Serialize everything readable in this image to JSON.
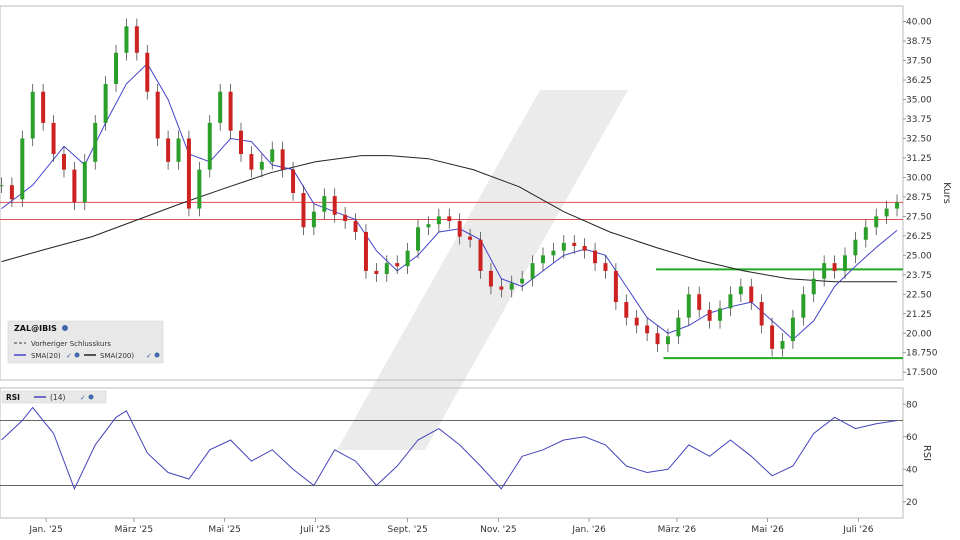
{
  "chart_data": [
    {
      "type": "line",
      "panel": "price",
      "xlabel": "",
      "ylabel": "Kurs",
      "ylim": [
        17.0,
        41.0
      ],
      "y_ticks": [
        17.5,
        18.75,
        20.0,
        21.25,
        22.5,
        23.75,
        25.0,
        26.25,
        27.5,
        28.75,
        30.0,
        31.25,
        32.5,
        33.75,
        35.0,
        36.25,
        37.5,
        38.75,
        40.0
      ],
      "y_tick_labels": [
        "17.500",
        "18.750",
        "20.00",
        "21.25",
        "22.50",
        "23.75",
        "25.00",
        "26.25",
        "27.50",
        "28.75",
        "30.00",
        "31.25",
        "32.50",
        "33.75",
        "35.00",
        "36.25",
        "37.50",
        "38.75",
        "40.00"
      ],
      "x_tick_labels": [
        "Jan. '25",
        "März '25",
        "Mai '25",
        "Juli '25",
        "Sept. '25",
        "Nov. '25",
        "Jan. '26",
        "März '26",
        "Mai '26",
        "Juli '26"
      ],
      "x_tick_dates": [
        "2025-01-01",
        "2025-03-01",
        "2025-05-01",
        "2025-07-01",
        "2025-09-01",
        "2025-11-01",
        "2026-01-01",
        "2026-03-01",
        "2026-05-01",
        "2026-07-01"
      ],
      "x_range": [
        "2024-12-01",
        "2026-07-31"
      ],
      "grid": false,
      "legend_position": "bottom-left",
      "legend": {
        "symbol": "ZAL@IBIS",
        "prev_close_label": "Vorheriger Schlusskurs",
        "sma20_label": "SMA(20)",
        "sma200_label": "SMA(200)"
      },
      "horizontal_lines": [
        {
          "kind": "resistance",
          "value": 28.4,
          "color": "#e05050"
        },
        {
          "kind": "resistance",
          "value": 27.3,
          "color": "#e05050"
        },
        {
          "kind": "support",
          "value": 24.1,
          "color": "#22aa22",
          "from": "2026-02-15",
          "to": "2026-07-31"
        },
        {
          "kind": "support",
          "value": 18.4,
          "color": "#22aa22",
          "from": "2026-02-20",
          "to": "2026-07-31"
        }
      ],
      "price_series": {
        "name": "ZAL@IBIS",
        "points": [
          [
            "2024-12-02",
            29.5
          ],
          [
            "2024-12-09",
            28.6
          ],
          [
            "2024-12-16",
            32.5
          ],
          [
            "2024-12-23",
            35.5
          ],
          [
            "2024-12-30",
            33.5
          ],
          [
            "2025-01-06",
            31.5
          ],
          [
            "2025-01-13",
            30.5
          ],
          [
            "2025-01-20",
            28.4
          ],
          [
            "2025-01-27",
            31.0
          ],
          [
            "2025-02-03",
            33.5
          ],
          [
            "2025-02-10",
            36.0
          ],
          [
            "2025-02-17",
            38.0
          ],
          [
            "2025-02-24",
            39.7
          ],
          [
            "2025-03-03",
            38.0
          ],
          [
            "2025-03-10",
            35.5
          ],
          [
            "2025-03-17",
            32.5
          ],
          [
            "2025-03-24",
            31.0
          ],
          [
            "2025-03-31",
            32.5
          ],
          [
            "2025-04-07",
            28.0
          ],
          [
            "2025-04-14",
            30.5
          ],
          [
            "2025-04-21",
            33.5
          ],
          [
            "2025-04-28",
            35.5
          ],
          [
            "2025-05-05",
            33.0
          ],
          [
            "2025-05-12",
            31.5
          ],
          [
            "2025-05-19",
            30.5
          ],
          [
            "2025-05-26",
            31.0
          ],
          [
            "2025-06-02",
            31.8
          ],
          [
            "2025-06-09",
            30.5
          ],
          [
            "2025-06-16",
            29.0
          ],
          [
            "2025-06-23",
            26.8
          ],
          [
            "2025-06-30",
            27.8
          ],
          [
            "2025-07-07",
            28.8
          ],
          [
            "2025-07-14",
            27.6
          ],
          [
            "2025-07-21",
            27.2
          ],
          [
            "2025-07-28",
            26.5
          ],
          [
            "2025-08-04",
            24.0
          ],
          [
            "2025-08-11",
            23.8
          ],
          [
            "2025-08-18",
            24.5
          ],
          [
            "2025-08-25",
            24.3
          ],
          [
            "2025-09-01",
            25.3
          ],
          [
            "2025-09-08",
            26.8
          ],
          [
            "2025-09-15",
            27.0
          ],
          [
            "2025-09-22",
            27.5
          ],
          [
            "2025-09-29",
            27.2
          ],
          [
            "2025-10-06",
            26.2
          ],
          [
            "2025-10-13",
            26.0
          ],
          [
            "2025-10-20",
            24.0
          ],
          [
            "2025-10-27",
            23.0
          ],
          [
            "2025-11-03",
            22.8
          ],
          [
            "2025-11-10",
            23.2
          ],
          [
            "2025-11-17",
            23.5
          ],
          [
            "2025-11-24",
            24.5
          ],
          [
            "2025-12-01",
            25.0
          ],
          [
            "2025-12-08",
            25.3
          ],
          [
            "2025-12-15",
            25.8
          ],
          [
            "2025-12-22",
            25.6
          ],
          [
            "2025-12-29",
            25.3
          ],
          [
            "2026-01-05",
            24.5
          ],
          [
            "2026-01-12",
            24.0
          ],
          [
            "2026-01-19",
            22.0
          ],
          [
            "2026-01-26",
            21.0
          ],
          [
            "2026-02-02",
            20.5
          ],
          [
            "2026-02-09",
            20.0
          ],
          [
            "2026-02-16",
            19.3
          ],
          [
            "2026-02-23",
            19.8
          ],
          [
            "2026-03-02",
            21.0
          ],
          [
            "2026-03-09",
            22.5
          ],
          [
            "2026-03-16",
            21.5
          ],
          [
            "2026-03-23",
            20.8
          ],
          [
            "2026-03-30",
            21.6
          ],
          [
            "2026-04-06",
            22.5
          ],
          [
            "2026-04-13",
            23.0
          ],
          [
            "2026-04-20",
            22.0
          ],
          [
            "2026-04-27",
            20.5
          ],
          [
            "2026-05-04",
            19.0
          ],
          [
            "2026-05-11",
            19.5
          ],
          [
            "2026-05-18",
            21.0
          ],
          [
            "2026-05-25",
            22.5
          ],
          [
            "2026-06-01",
            23.5
          ],
          [
            "2026-06-08",
            24.5
          ],
          [
            "2026-06-15",
            24.0
          ],
          [
            "2026-06-22",
            25.0
          ],
          [
            "2026-06-29",
            26.0
          ],
          [
            "2026-07-06",
            26.8
          ],
          [
            "2026-07-13",
            27.5
          ],
          [
            "2026-07-20",
            28.0
          ],
          [
            "2026-07-27",
            28.4
          ]
        ]
      },
      "sma20": {
        "name": "SMA(20)",
        "color": "#4444cc",
        "points": [
          [
            "2024-12-02",
            28.0
          ],
          [
            "2024-12-23",
            29.5
          ],
          [
            "2025-01-13",
            32.0
          ],
          [
            "2025-01-27",
            30.8
          ],
          [
            "2025-02-10",
            33.5
          ],
          [
            "2025-02-24",
            36.0
          ],
          [
            "2025-03-10",
            37.3
          ],
          [
            "2025-03-24",
            35.0
          ],
          [
            "2025-04-07",
            31.5
          ],
          [
            "2025-04-21",
            31.0
          ],
          [
            "2025-05-05",
            32.5
          ],
          [
            "2025-05-19",
            32.3
          ],
          [
            "2025-06-02",
            30.8
          ],
          [
            "2025-06-16",
            30.5
          ],
          [
            "2025-06-30",
            28.3
          ],
          [
            "2025-07-14",
            27.8
          ],
          [
            "2025-07-28",
            27.3
          ],
          [
            "2025-08-11",
            25.3
          ],
          [
            "2025-08-25",
            24.0
          ],
          [
            "2025-09-08",
            25.0
          ],
          [
            "2025-09-22",
            26.5
          ],
          [
            "2025-10-06",
            26.7
          ],
          [
            "2025-10-20",
            26.0
          ],
          [
            "2025-11-03",
            23.5
          ],
          [
            "2025-11-17",
            23.0
          ],
          [
            "2025-12-01",
            24.0
          ],
          [
            "2025-12-15",
            25.0
          ],
          [
            "2025-12-29",
            25.4
          ],
          [
            "2026-01-12",
            25.0
          ],
          [
            "2026-01-26",
            23.0
          ],
          [
            "2026-02-09",
            21.0
          ],
          [
            "2026-02-23",
            20.0
          ],
          [
            "2026-03-09",
            20.5
          ],
          [
            "2026-03-23",
            21.3
          ],
          [
            "2026-04-06",
            21.7
          ],
          [
            "2026-04-20",
            22.0
          ],
          [
            "2026-05-04",
            20.8
          ],
          [
            "2026-05-18",
            19.6
          ],
          [
            "2026-06-01",
            20.8
          ],
          [
            "2026-06-15",
            23.0
          ],
          [
            "2026-06-29",
            24.3
          ],
          [
            "2026-07-13",
            25.5
          ],
          [
            "2026-07-27",
            26.6
          ]
        ]
      },
      "sma200": {
        "name": "SMA(200)",
        "color": "#222222",
        "points": [
          [
            "2024-12-02",
            24.6
          ],
          [
            "2025-01-01",
            25.4
          ],
          [
            "2025-02-01",
            26.2
          ],
          [
            "2025-03-01",
            27.2
          ],
          [
            "2025-04-01",
            28.3
          ],
          [
            "2025-05-01",
            29.3
          ],
          [
            "2025-06-01",
            30.3
          ],
          [
            "2025-07-01",
            31.0
          ],
          [
            "2025-08-01",
            31.4
          ],
          [
            "2025-08-20",
            31.4
          ],
          [
            "2025-09-15",
            31.2
          ],
          [
            "2025-10-15",
            30.5
          ],
          [
            "2025-11-15",
            29.4
          ],
          [
            "2025-12-15",
            27.8
          ],
          [
            "2026-01-15",
            26.5
          ],
          [
            "2026-02-15",
            25.5
          ],
          [
            "2026-03-15",
            24.7
          ],
          [
            "2026-04-15",
            24.0
          ],
          [
            "2026-05-15",
            23.5
          ],
          [
            "2026-06-15",
            23.3
          ],
          [
            "2026-07-27",
            23.3
          ]
        ]
      }
    },
    {
      "type": "line",
      "panel": "rsi",
      "ylabel": "RSI",
      "ylim": [
        10,
        90
      ],
      "y_ticks": [
        20,
        40,
        60,
        80
      ],
      "y_tick_labels": [
        "20",
        "40",
        "60",
        "80"
      ],
      "reference_lines": [
        70,
        30
      ],
      "legend_position": "top-left",
      "legend": {
        "indicator": "RSI",
        "period_label": "(14)"
      },
      "series": [
        {
          "name": "(14)",
          "color": "#4444bb",
          "points": [
            [
              "2024-12-02",
              58
            ],
            [
              "2024-12-16",
              70
            ],
            [
              "2024-12-23",
              78
            ],
            [
              "2025-01-06",
              62
            ],
            [
              "2025-01-20",
              28
            ],
            [
              "2025-02-03",
              55
            ],
            [
              "2025-02-17",
              72
            ],
            [
              "2025-02-24",
              76
            ],
            [
              "2025-03-10",
              50
            ],
            [
              "2025-03-24",
              38
            ],
            [
              "2025-04-07",
              34
            ],
            [
              "2025-04-21",
              52
            ],
            [
              "2025-05-05",
              58
            ],
            [
              "2025-05-19",
              45
            ],
            [
              "2025-06-02",
              52
            ],
            [
              "2025-06-16",
              40
            ],
            [
              "2025-06-30",
              30
            ],
            [
              "2025-07-14",
              52
            ],
            [
              "2025-07-28",
              45
            ],
            [
              "2025-08-11",
              30
            ],
            [
              "2025-08-25",
              42
            ],
            [
              "2025-09-08",
              58
            ],
            [
              "2025-09-22",
              65
            ],
            [
              "2025-10-06",
              55
            ],
            [
              "2025-10-20",
              42
            ],
            [
              "2025-11-03",
              28
            ],
            [
              "2025-11-17",
              48
            ],
            [
              "2025-12-01",
              52
            ],
            [
              "2025-12-15",
              58
            ],
            [
              "2025-12-29",
              60
            ],
            [
              "2026-01-12",
              55
            ],
            [
              "2026-01-26",
              42
            ],
            [
              "2026-02-09",
              38
            ],
            [
              "2026-02-23",
              40
            ],
            [
              "2026-03-09",
              55
            ],
            [
              "2026-03-23",
              48
            ],
            [
              "2026-04-06",
              58
            ],
            [
              "2026-04-20",
              48
            ],
            [
              "2026-05-04",
              36
            ],
            [
              "2026-05-18",
              42
            ],
            [
              "2026-06-01",
              62
            ],
            [
              "2026-06-15",
              72
            ],
            [
              "2026-06-29",
              65
            ],
            [
              "2026-07-13",
              68
            ],
            [
              "2026-07-27",
              70
            ]
          ]
        }
      ]
    }
  ]
}
